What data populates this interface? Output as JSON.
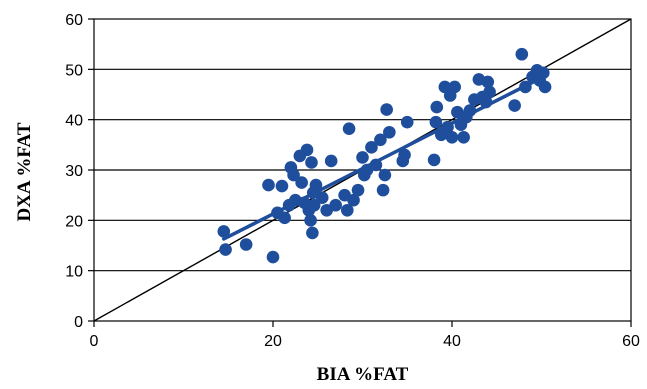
{
  "chart_data": {
    "type": "scatter",
    "title": "",
    "xlabel": "BIA %FAT",
    "ylabel": "DXA %FAT",
    "xlim": [
      0,
      60
    ],
    "ylim": [
      0,
      60
    ],
    "xticks": [
      0,
      20,
      40,
      60
    ],
    "yticks": [
      0,
      10,
      20,
      30,
      40,
      50,
      60
    ],
    "grid": "horizontal",
    "colors": {
      "points": "#1f4e9c",
      "fit_line": "#1f4e9c",
      "identity_line": "#000000",
      "grid": "#000000"
    },
    "series": [
      {
        "points": [
          [
            14.5,
            17.8
          ],
          [
            14.7,
            14.2
          ],
          [
            17.0,
            15.2
          ],
          [
            19.5,
            27.0
          ],
          [
            20.0,
            12.7
          ],
          [
            20.5,
            21.5
          ],
          [
            21.0,
            26.8
          ],
          [
            21.3,
            20.5
          ],
          [
            21.8,
            23.0
          ],
          [
            22.0,
            30.5
          ],
          [
            22.3,
            29.0
          ],
          [
            22.5,
            24.0
          ],
          [
            23.0,
            32.8
          ],
          [
            23.2,
            27.5
          ],
          [
            23.5,
            23.5
          ],
          [
            23.8,
            34.0
          ],
          [
            24.0,
            22.0
          ],
          [
            24.2,
            20.0
          ],
          [
            24.3,
            31.5
          ],
          [
            24.4,
            17.5
          ],
          [
            24.5,
            25.5
          ],
          [
            24.6,
            23.0
          ],
          [
            24.8,
            27.0
          ],
          [
            25.5,
            24.5
          ],
          [
            26.0,
            22.0
          ],
          [
            26.5,
            31.8
          ],
          [
            27.0,
            23.0
          ],
          [
            28.0,
            25.0
          ],
          [
            28.3,
            22.0
          ],
          [
            28.5,
            38.2
          ],
          [
            29.0,
            24.0
          ],
          [
            29.5,
            26.0
          ],
          [
            30.0,
            32.5
          ],
          [
            30.2,
            29.0
          ],
          [
            30.5,
            30.0
          ],
          [
            31.0,
            34.5
          ],
          [
            31.5,
            31.0
          ],
          [
            32.0,
            36.0
          ],
          [
            32.3,
            26.0
          ],
          [
            32.5,
            29.0
          ],
          [
            32.7,
            42.0
          ],
          [
            33.0,
            37.5
          ],
          [
            34.5,
            31.8
          ],
          [
            34.7,
            33.0
          ],
          [
            35.0,
            39.5
          ],
          [
            38.0,
            32.0
          ],
          [
            38.2,
            39.5
          ],
          [
            38.3,
            42.5
          ],
          [
            38.8,
            37.0
          ],
          [
            39.2,
            46.5
          ],
          [
            39.5,
            38.5
          ],
          [
            39.8,
            44.8
          ],
          [
            40.0,
            36.5
          ],
          [
            40.3,
            46.5
          ],
          [
            40.6,
            41.5
          ],
          [
            41.0,
            39.0
          ],
          [
            41.3,
            36.5
          ],
          [
            41.6,
            40.5
          ],
          [
            42.0,
            41.8
          ],
          [
            42.5,
            44.0
          ],
          [
            43.0,
            48.0
          ],
          [
            43.4,
            44.5
          ],
          [
            43.8,
            43.5
          ],
          [
            44.0,
            47.5
          ],
          [
            44.2,
            45.5
          ],
          [
            47.0,
            42.8
          ],
          [
            47.8,
            53.0
          ],
          [
            48.2,
            46.5
          ],
          [
            49.0,
            48.5
          ],
          [
            49.5,
            49.8
          ],
          [
            49.8,
            47.8
          ],
          [
            50.2,
            49.3
          ],
          [
            50.4,
            46.5
          ]
        ]
      }
    ],
    "fit_line": [
      [
        14.5,
        16.3
      ],
      [
        50.3,
        48.6
      ]
    ],
    "identity_line": [
      [
        0,
        0
      ],
      [
        60,
        60
      ]
    ]
  }
}
